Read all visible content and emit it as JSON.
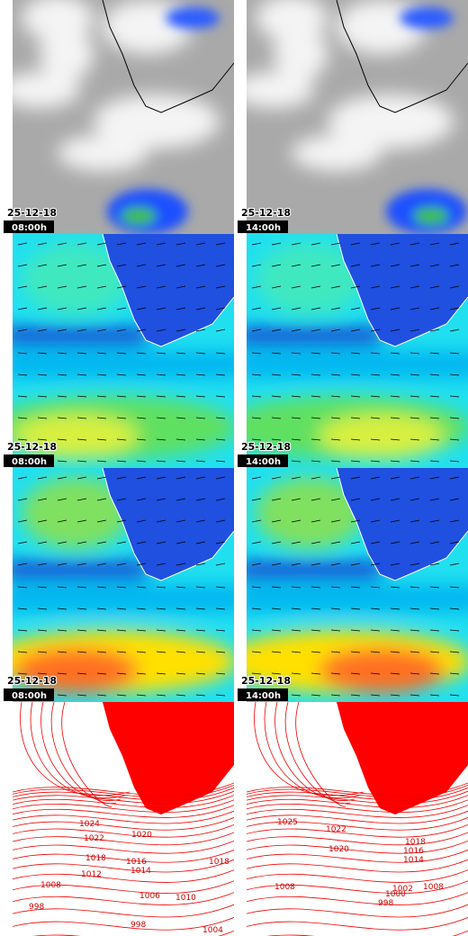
{
  "panels": [
    {
      "date": "25-12-18",
      "time": "08:00h"
    },
    {
      "date": "25-12-18",
      "time": "14:00h"
    },
    {
      "date": "25-12-18",
      "time": "08:00h"
    },
    {
      "date": "25-12-18",
      "time": "14:00h"
    },
    {
      "date": "25-12-18",
      "time": "08:00h"
    },
    {
      "date": "25-12-18",
      "time": "14:00h"
    }
  ],
  "isobar_labels": {
    "left": [
      "1024",
      "1022",
      "1020",
      "1018",
      "1016",
      "1014",
      "1012",
      "1008",
      "1006",
      "1010",
      "1018",
      "998",
      "998",
      "1004"
    ],
    "right": [
      "1025",
      "1022",
      "1020",
      "1018",
      "1016",
      "1014",
      "1008",
      "1008",
      "1000",
      "998",
      "1002"
    ]
  }
}
